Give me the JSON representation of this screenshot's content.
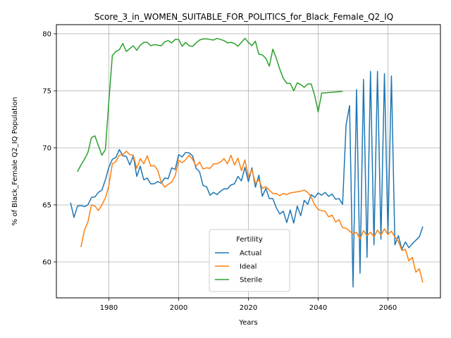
{
  "chart_data": {
    "type": "line",
    "title": "Score_3_in_WOMEN_SUITABLE_FOR_POLITICS_for_Black_Female_Q2_IQ",
    "xlabel": "Years",
    "ylabel": "% of Black_Female Q2_IQ Population",
    "xlim": [
      1964.95,
      2075.05
    ],
    "ylim": [
      56.85,
      80.8
    ],
    "xticks": [
      1980,
      2000,
      2020,
      2040,
      2060
    ],
    "yticks": [
      60,
      65,
      70,
      75,
      80
    ],
    "grid": true,
    "legend": {
      "title": "Fertility",
      "position": "lower center"
    },
    "series": [
      {
        "name": "Actual",
        "color": "#1f77b4",
        "x": [
          1969,
          1970,
          1971,
          1972,
          1973,
          1974,
          1975,
          1976,
          1977,
          1978,
          1979,
          1980,
          1981,
          1982,
          1983,
          1984,
          1985,
          1986,
          1987,
          1988,
          1989,
          1990,
          1991,
          1992,
          1993,
          1994,
          1995,
          1996,
          1997,
          1998,
          1999,
          2000,
          2001,
          2002,
          2003,
          2004,
          2005,
          2006,
          2007,
          2008,
          2009,
          2010,
          2011,
          2012,
          2013,
          2014,
          2015,
          2016,
          2017,
          2018,
          2019,
          2020,
          2021,
          2022,
          2023,
          2024,
          2025,
          2026,
          2027,
          2028,
          2029,
          2030,
          2031,
          2032,
          2033,
          2034,
          2035,
          2036,
          2037,
          2038,
          2039,
          2040,
          2041,
          2042,
          2043,
          2044,
          2045,
          2046,
          2047,
          2048,
          2049,
          2050,
          2051,
          2052,
          2053,
          2054,
          2055,
          2056,
          2057,
          2058,
          2059,
          2060,
          2061,
          2062,
          2063,
          2064,
          2065,
          2066,
          2067,
          2068,
          2069,
          2070
        ],
        "y": [
          65.2,
          63.9,
          64.9,
          64.95,
          64.85,
          65.0,
          65.65,
          65.7,
          66.1,
          66.3,
          67.2,
          68.3,
          69.0,
          69.15,
          69.85,
          69.3,
          69.25,
          68.5,
          69.3,
          67.5,
          68.4,
          67.2,
          67.35,
          66.85,
          66.85,
          67.05,
          66.9,
          67.35,
          67.3,
          68.25,
          68.1,
          69.4,
          69.2,
          69.6,
          69.55,
          69.3,
          68.2,
          67.9,
          66.7,
          66.6,
          65.85,
          66.1,
          65.9,
          66.2,
          66.4,
          66.4,
          66.75,
          66.85,
          67.5,
          67.1,
          68.3,
          67.05,
          68.25,
          66.55,
          67.6,
          65.75,
          66.45,
          65.55,
          65.55,
          64.75,
          64.2,
          64.45,
          63.45,
          64.55,
          63.4,
          64.9,
          64.05,
          65.4,
          65.05,
          65.9,
          65.65,
          66.05,
          65.85,
          66.1,
          65.75,
          65.95,
          65.5,
          65.55,
          65.05,
          72.0,
          73.7,
          57.8,
          75.1,
          59.0,
          76.0,
          60.4,
          76.7,
          61.5,
          76.7,
          62.0,
          76.5,
          62.5,
          76.3,
          61.5,
          62.3,
          61.1,
          61.75,
          61.25,
          61.6,
          61.9,
          62.2,
          63.1
        ]
      },
      {
        "name": "Ideal",
        "color": "#ff7f0e",
        "x": [
          1972,
          1973,
          1974,
          1975,
          1976,
          1977,
          1978,
          1979,
          1980,
          1981,
          1982,
          1983,
          1984,
          1985,
          1986,
          1987,
          1988,
          1989,
          1990,
          1991,
          1992,
          1993,
          1994,
          1995,
          1996,
          1997,
          1998,
          1999,
          2000,
          2001,
          2002,
          2003,
          2004,
          2005,
          2006,
          2007,
          2008,
          2009,
          2010,
          2011,
          2012,
          2013,
          2014,
          2015,
          2016,
          2017,
          2018,
          2019,
          2020,
          2021,
          2022,
          2023,
          2024,
          2025,
          2026,
          2027,
          2028,
          2029,
          2030,
          2031,
          2032,
          2033,
          2034,
          2035,
          2036,
          2037,
          2038,
          2039,
          2040,
          2041,
          2042,
          2043,
          2044,
          2045,
          2046,
          2047,
          2048,
          2049,
          2050,
          2051,
          2052,
          2053,
          2054,
          2055,
          2056,
          2057,
          2058,
          2059,
          2060,
          2061,
          2062,
          2063,
          2064,
          2065,
          2066,
          2067,
          2068,
          2069,
          2070
        ],
        "y": [
          61.3,
          62.8,
          63.5,
          65.0,
          64.9,
          64.5,
          65.0,
          65.6,
          66.7,
          68.6,
          68.8,
          69.35,
          69.4,
          69.7,
          69.4,
          69.35,
          68.2,
          69.05,
          68.6,
          69.3,
          68.4,
          68.45,
          68.05,
          67.0,
          66.55,
          66.8,
          67.0,
          67.55,
          68.9,
          68.7,
          68.95,
          69.35,
          69.0,
          68.4,
          68.75,
          68.15,
          68.25,
          68.2,
          68.6,
          68.6,
          68.75,
          69.05,
          68.6,
          69.35,
          68.5,
          69.1,
          68.0,
          68.95,
          67.45,
          68.1,
          66.9,
          67.2,
          66.45,
          66.6,
          66.3,
          66.0,
          66.0,
          65.8,
          66.0,
          65.9,
          66.05,
          66.1,
          66.15,
          66.2,
          66.3,
          66.1,
          65.7,
          65.0,
          64.6,
          64.5,
          64.45,
          63.95,
          64.1,
          63.5,
          63.7,
          63.0,
          62.95,
          62.7,
          62.45,
          62.6,
          62.0,
          62.75,
          62.3,
          62.6,
          62.2,
          62.8,
          62.35,
          62.9,
          62.4,
          62.7,
          62.2,
          61.8,
          61.0,
          61.1,
          60.1,
          60.4,
          59.1,
          59.4,
          58.2
        ]
      },
      {
        "name": "Sterile",
        "color": "#2ca02c",
        "x": [
          1971,
          1972,
          1973,
          1974,
          1975,
          1976,
          1977,
          1978,
          1979,
          1980,
          1981,
          1982,
          1983,
          1984,
          1985,
          1986,
          1987,
          1988,
          1989,
          1990,
          1991,
          1992,
          1993,
          1994,
          1995,
          1996,
          1997,
          1998,
          1999,
          2000,
          2001,
          2002,
          2003,
          2004,
          2005,
          2006,
          2007,
          2008,
          2009,
          2010,
          2011,
          2012,
          2013,
          2014,
          2015,
          2016,
          2017,
          2018,
          2019,
          2020,
          2021,
          2022,
          2023,
          2024,
          2025,
          2026,
          2027,
          2028,
          2029,
          2030,
          2031,
          2032,
          2033,
          2034,
          2035,
          2036,
          2037,
          2038,
          2039,
          2040,
          2041,
          2047
        ],
        "y": [
          67.9,
          68.5,
          69.0,
          69.6,
          70.9,
          71.05,
          70.2,
          69.35,
          69.85,
          74.1,
          78.1,
          78.45,
          78.6,
          79.15,
          78.45,
          78.7,
          78.95,
          78.55,
          79.0,
          79.25,
          79.25,
          78.95,
          79.05,
          79.0,
          78.95,
          79.3,
          79.4,
          79.2,
          79.5,
          79.5,
          78.9,
          79.25,
          78.95,
          78.9,
          79.2,
          79.45,
          79.55,
          79.55,
          79.5,
          79.45,
          79.6,
          79.5,
          79.4,
          79.2,
          79.25,
          79.15,
          78.9,
          79.25,
          79.6,
          79.25,
          78.95,
          79.35,
          78.2,
          78.15,
          77.85,
          77.15,
          78.65,
          77.85,
          76.9,
          76.1,
          75.65,
          75.65,
          75.0,
          75.7,
          75.55,
          75.3,
          75.6,
          75.6,
          74.6,
          73.15,
          74.8,
          74.95
        ]
      }
    ]
  }
}
